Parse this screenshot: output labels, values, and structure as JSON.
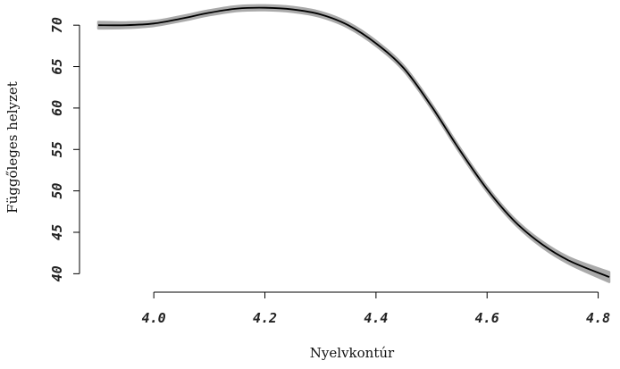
{
  "chart_data": {
    "type": "line",
    "title": "",
    "xlabel": "Nyelvkontúr",
    "ylabel": "Függőleges helyzet",
    "xlim": [
      3.9,
      4.82
    ],
    "ylim": [
      39.5,
      72.5
    ],
    "x_ticks": [
      4.0,
      4.2,
      4.4,
      4.6,
      4.8
    ],
    "x_tick_labels": [
      "4.0",
      "4.2",
      "4.4",
      "4.6",
      "4.8"
    ],
    "y_ticks": [
      40,
      45,
      50,
      55,
      60,
      65,
      70
    ],
    "y_tick_labels": [
      "40",
      "45",
      "50",
      "55",
      "60",
      "65",
      "70"
    ],
    "grid": false,
    "series": [
      {
        "line_color": "#000000",
        "band_color": "#aaaaaa",
        "x": [
          3.9,
          3.95,
          4.0,
          4.05,
          4.1,
          4.15,
          4.2,
          4.25,
          4.3,
          4.35,
          4.4,
          4.45,
          4.5,
          4.55,
          4.6,
          4.65,
          4.7,
          4.75,
          4.82
        ],
        "y": [
          70.0,
          70.0,
          70.2,
          70.8,
          71.5,
          72.0,
          72.1,
          71.9,
          71.3,
          70.0,
          67.8,
          64.8,
          60.2,
          55.0,
          50.2,
          46.3,
          43.5,
          41.5,
          39.6
        ],
        "ci_halfwidth": [
          0.4,
          0.35,
          0.3,
          0.3,
          0.3,
          0.3,
          0.3,
          0.3,
          0.3,
          0.3,
          0.3,
          0.3,
          0.3,
          0.3,
          0.3,
          0.3,
          0.35,
          0.4,
          0.6
        ]
      }
    ]
  }
}
